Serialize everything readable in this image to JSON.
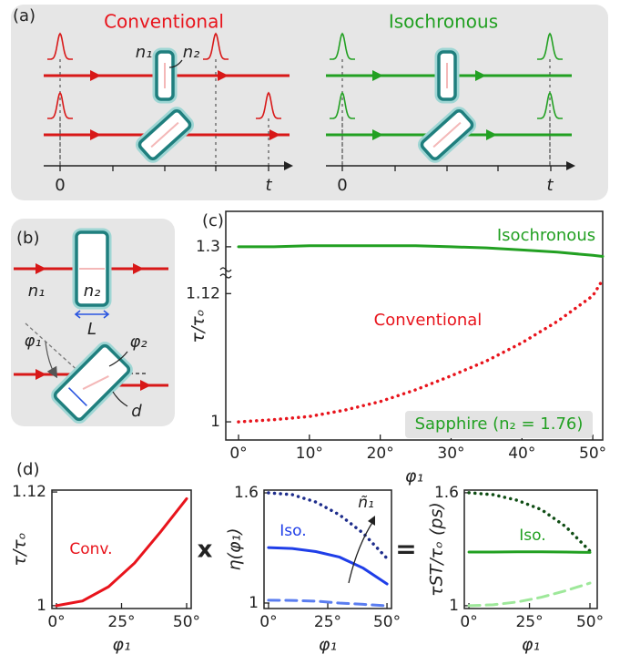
{
  "panel_a": {
    "label": "(a)",
    "left_title": "Conventional",
    "right_title": "Isochronous",
    "n1": "n₁",
    "n2": "n₂",
    "left_axis": {
      "start": "0",
      "end": "t"
    },
    "right_axis": {
      "start": "0",
      "end": "t"
    }
  },
  "panel_b": {
    "label": "(b)",
    "n1": "n₁",
    "n2": "n₂",
    "length": "L",
    "phi1": "φ₁",
    "phi2": "φ₂",
    "thickness": "d"
  },
  "panel_d_label": "(d)",
  "operators": [
    "x",
    "="
  ],
  "chart_data": [
    {
      "type": "line",
      "label": "(c)",
      "xlabel": "φ₁",
      "ylabel": "τ/τₒ",
      "x": [
        0,
        5,
        10,
        15,
        20,
        25,
        30,
        35,
        40,
        45,
        50,
        51.4
      ],
      "xlim": [
        -1.8,
        51.4
      ],
      "xticks": [
        {
          "value": 0,
          "label": "0°"
        },
        {
          "value": 10,
          "label": "10°"
        },
        {
          "value": 20,
          "label": "20°"
        },
        {
          "value": 30,
          "label": "30°"
        },
        {
          "value": 40,
          "label": "40°"
        },
        {
          "value": 50,
          "label": "50°"
        }
      ],
      "ylim": [
        0.983,
        1.197
      ],
      "yticks": [
        1,
        1.12
      ],
      "y2lim": [
        1.12,
        1.333
      ],
      "y2ticks": [
        1.3
      ],
      "series": [
        {
          "name": "Isochronous",
          "color": "#22a022",
          "style": "solid",
          "axis": "y2",
          "values": [
            1.3,
            1.3,
            1.301,
            1.301,
            1.301,
            1.301,
            1.3,
            1.299,
            1.297,
            1.295,
            1.292,
            1.291
          ]
        },
        {
          "name": "Conventional",
          "color": "#e8141c",
          "style": "dotted",
          "values": [
            1,
            1.002,
            1.005,
            1.011,
            1.019,
            1.03,
            1.043,
            1.057,
            1.074,
            1.094,
            1.118,
            1.133
          ]
        }
      ],
      "annotations": [
        "Sapphire (n₂ = 1.76)"
      ]
    },
    {
      "type": "line",
      "xlabel": "φ₁",
      "ylabel": "τ/τₒ",
      "x": [
        0,
        10,
        20,
        30,
        40,
        50
      ],
      "xlim": [
        -1.75,
        51.75
      ],
      "xticks": [
        {
          "value": 0,
          "label": "0°"
        },
        {
          "value": 25,
          "label": "25°"
        },
        {
          "value": 50,
          "label": "50°"
        }
      ],
      "ylim": [
        0.997,
        1.122
      ],
      "yticks": [
        1,
        1.12
      ],
      "series": [
        {
          "name": "Conv.",
          "color": "#e8141c",
          "style": "solid",
          "values": [
            1,
            1.005,
            1.02,
            1.045,
            1.078,
            1.113
          ]
        }
      ]
    },
    {
      "type": "line",
      "xlabel": "φ₁",
      "ylabel": "η(φ₁)",
      "x": [
        0,
        10,
        20,
        30,
        40,
        50
      ],
      "xlim": [
        -1.9,
        51.9
      ],
      "xticks": [
        {
          "value": 0,
          "label": "0°"
        },
        {
          "value": 25,
          "label": "25°"
        },
        {
          "value": 50,
          "label": "50°"
        }
      ],
      "ylim": [
        0.97,
        1.615
      ],
      "yticks": [
        1,
        1.6
      ],
      "series": [
        {
          "color": "#1e2d8c",
          "style": "dotted",
          "values": [
            1.6,
            1.59,
            1.55,
            1.48,
            1.38,
            1.243
          ]
        },
        {
          "name": "Iso.",
          "color": "#1f3ee8",
          "style": "solid",
          "values": [
            1.302,
            1.297,
            1.28,
            1.25,
            1.19,
            1.104
          ]
        },
        {
          "color": "#5a7df0",
          "style": "dashed",
          "values": [
            1.015,
            1.014,
            1.01,
            1.0,
            0.993,
            0.985
          ]
        }
      ],
      "annotations": [
        "ñ₁"
      ]
    },
    {
      "type": "line",
      "xlabel": "φ₁",
      "ylabel": "τST/τₒ (ps)",
      "x": [
        0,
        10,
        20,
        30,
        40,
        50
      ],
      "xlim": [
        -1.9,
        53
      ],
      "xticks": [
        {
          "value": 0,
          "label": "0°"
        },
        {
          "value": 25,
          "label": "25°"
        },
        {
          "value": 50,
          "label": "50°"
        }
      ],
      "ylim": [
        0.985,
        1.614
      ],
      "yticks": [
        1,
        1.6
      ],
      "series": [
        {
          "color": "#0f4d14",
          "style": "dotted",
          "values": [
            1.6,
            1.59,
            1.56,
            1.51,
            1.42,
            1.29
          ]
        },
        {
          "name": "Iso.",
          "color": "#22a022",
          "style": "solid",
          "values": [
            1.285,
            1.285,
            1.286,
            1.286,
            1.285,
            1.283
          ]
        },
        {
          "color": "#9ee89a",
          "style": "dashed",
          "values": [
            1.0,
            1.005,
            1.02,
            1.045,
            1.08,
            1.12
          ]
        }
      ]
    }
  ]
}
